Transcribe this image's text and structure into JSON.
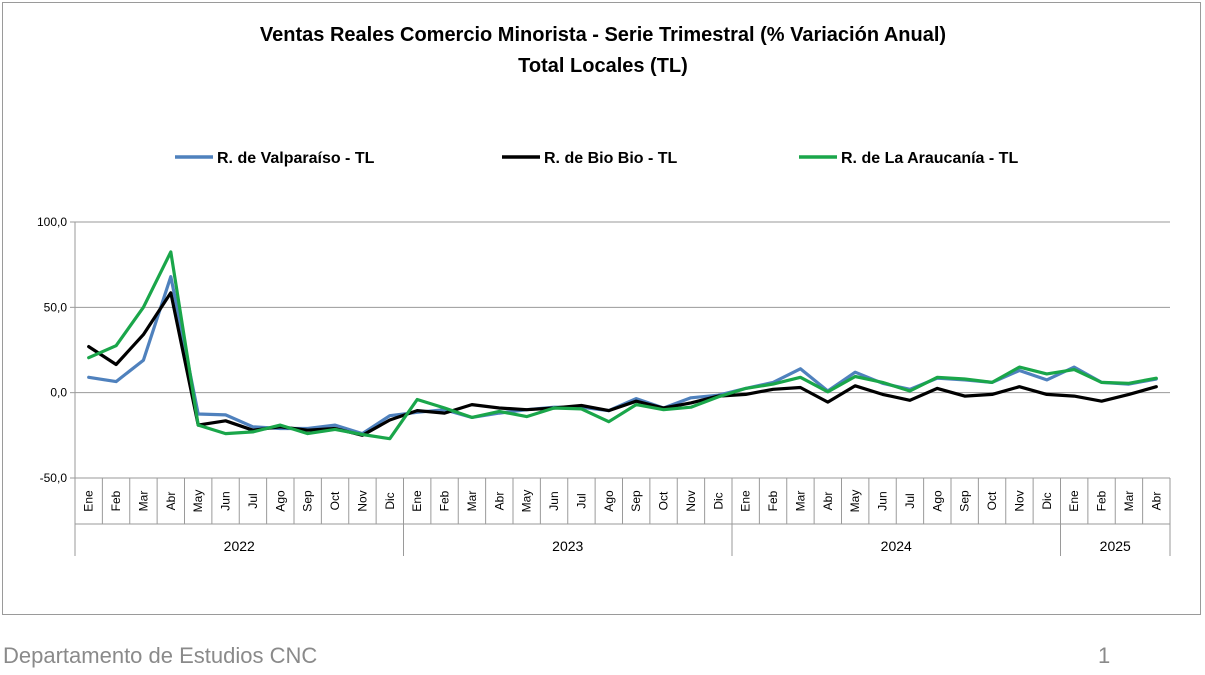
{
  "chart_data": {
    "type": "line",
    "title": "Ventas Reales Comercio Minorista - Serie Trimestral (% Variación Anual)",
    "subtitle": "Total Locales (TL)",
    "months": [
      "Ene",
      "Feb",
      "Mar",
      "Abr",
      "May",
      "Jun",
      "Jul",
      "Ago",
      "Sep",
      "Oct",
      "Nov",
      "Dic",
      "Ene",
      "Feb",
      "Mar",
      "Abr",
      "May",
      "Jun",
      "Jul",
      "Ago",
      "Sep",
      "Oct",
      "Nov",
      "Dic",
      "Ene",
      "Feb",
      "Mar",
      "Abr",
      "May",
      "Jun",
      "Jul",
      "Ago",
      "Sep",
      "Oct",
      "Nov",
      "Dic",
      "Ene",
      "Feb",
      "Mar",
      "Abr"
    ],
    "years": [
      {
        "label": "2022",
        "count": 12
      },
      {
        "label": "2023",
        "count": 12
      },
      {
        "label": "2024",
        "count": 12
      },
      {
        "label": "2025",
        "count": 4
      }
    ],
    "yticks": [
      "100,0",
      "50,0",
      "0,0",
      "-50,0"
    ],
    "ytick_values": [
      100,
      50,
      0,
      -50
    ],
    "ylim": [
      -50,
      100
    ],
    "legend_position": "top",
    "grid": "horizontal",
    "series": [
      {
        "name": "R. de Valparaíso - TL",
        "color": "#4f81bd",
        "values": [
          9,
          6.5,
          19,
          68,
          -12.5,
          -13,
          -20,
          -21,
          -21,
          -19,
          -24,
          -13.5,
          -11.5,
          -10,
          -14.5,
          -12,
          -10,
          -8.5,
          -8.5,
          -10.5,
          -3.5,
          -9,
          -3,
          -1.5,
          2.5,
          6,
          14,
          1,
          12,
          5.5,
          2,
          8.5,
          7.5,
          6,
          13,
          7.5,
          15,
          6,
          5,
          8
        ]
      },
      {
        "name": "R. de Bio Bio - TL",
        "color": "#000000",
        "values": [
          27,
          16.5,
          34,
          58.5,
          -19,
          -16.5,
          -22,
          -20,
          -22,
          -21,
          -25,
          -16,
          -10.5,
          -12,
          -7,
          -9,
          -10,
          -9,
          -7.5,
          -10.5,
          -5,
          -9,
          -6,
          -2,
          -1,
          2,
          3,
          -5.5,
          4,
          -1,
          -4.5,
          2.5,
          -2,
          -1,
          3.5,
          -1,
          -2,
          -5,
          -1,
          3.5
        ]
      },
      {
        "name": "R. de La Araucanía - TL",
        "color": "#1aa64a",
        "values": [
          20.5,
          27.5,
          50,
          82.5,
          -19,
          -24,
          -23,
          -19,
          -24,
          -21.5,
          -24.5,
          -27,
          -4,
          -9,
          -14.5,
          -11,
          -14,
          -9,
          -9.5,
          -17,
          -7,
          -10,
          -8.5,
          -2.5,
          2.5,
          5,
          9,
          0.5,
          9.5,
          6,
          1,
          9,
          8,
          6,
          15,
          11,
          13.5,
          6,
          5.5,
          8.5
        ]
      }
    ]
  },
  "footer": {
    "left": "Departamento de Estudios CNC",
    "page_number": "1"
  }
}
